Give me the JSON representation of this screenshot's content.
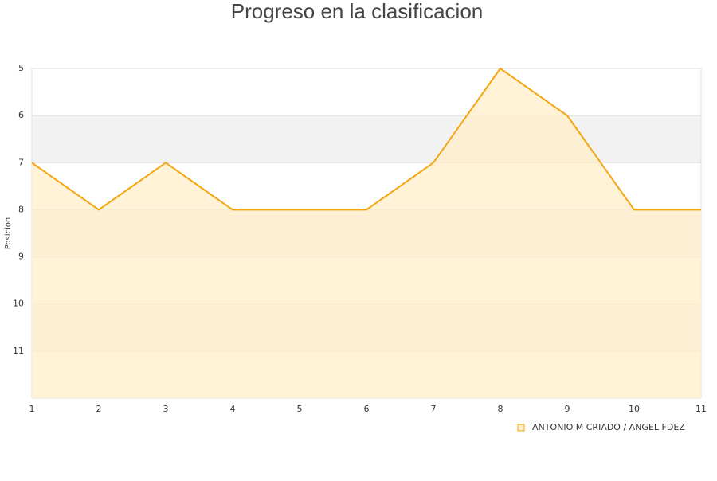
{
  "chart_data": {
    "type": "area",
    "title": "Progreso en la clasificacion",
    "ylabel": "Posicion",
    "x": [
      1,
      2,
      3,
      4,
      5,
      6,
      7,
      8,
      9,
      10,
      11
    ],
    "series": [
      {
        "name": "ANTONIO M CRIADO / ANGEL FDEZ",
        "color": "#f5a50e",
        "fill": "#ffedc9",
        "values": [
          7,
          8,
          7,
          8,
          8,
          8,
          7,
          5,
          6,
          8,
          8
        ]
      }
    ],
    "xlim": [
      1,
      11
    ],
    "xticks": [
      1,
      2,
      3,
      4,
      5,
      6,
      7,
      8,
      9,
      10,
      11
    ],
    "ylim": [
      5,
      12
    ],
    "yticks": [
      5,
      6,
      7,
      8,
      9,
      10,
      11
    ],
    "invert_y": true,
    "grid": true,
    "band_color": "#f2f2f2",
    "legend": "bottom-right"
  }
}
